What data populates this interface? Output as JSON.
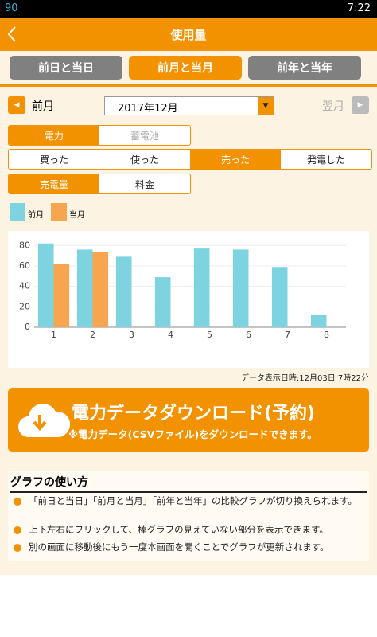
{
  "status_bar": {
    "battery_level": "90",
    "time": "7:22"
  },
  "header": {
    "title": "使用量"
  },
  "tabs": {
    "items": [
      "前日と当日",
      "前月と当月",
      "前年と当年"
    ],
    "active": 1
  },
  "period": {
    "prev": "前月",
    "selected": "2017年12月",
    "next": "翌月"
  },
  "type_toggle": {
    "items": [
      "電力",
      "蓄電池"
    ],
    "active": 0
  },
  "action_toggle": {
    "items": [
      "買った",
      "使った",
      "売った",
      "発電した"
    ],
    "active": 2
  },
  "metric_toggle": {
    "items": [
      "売電量",
      "料金"
    ],
    "active": 0
  },
  "chart_data": {
    "type": "bar",
    "categories": [
      "1",
      "2",
      "3",
      "4",
      "5",
      "6",
      "7",
      "8"
    ],
    "series": [
      {
        "name": "前月",
        "color": "#7dd3df",
        "values": [
          82,
          76,
          69,
          49,
          77,
          76,
          59,
          12
        ]
      },
      {
        "name": "当月",
        "color": "#f7a64f",
        "values": [
          62,
          74,
          null,
          null,
          null,
          null,
          null,
          null
        ]
      }
    ],
    "ylim": [
      0,
      88
    ],
    "yticks": [
      0,
      20,
      40,
      60,
      80
    ],
    "grid": true
  },
  "timestamp": "データ表示日時:12月03日 7時22分",
  "download": {
    "title": "電力データダウンロード(予約)",
    "note": "※電力データ(CSVファイル)をダウンロードできます。"
  },
  "guide": {
    "title": "グラフの使い方",
    "items": [
      "「前日と当日」「前月と当月」「前年と当年」の比較グラフが切り換えられます。",
      "上下左右にフリックして、棒グラフの見えていない部分を表示できます。",
      "別の画面に移動後にもう一度本画面を開くことでグラフが更新されます。"
    ]
  }
}
